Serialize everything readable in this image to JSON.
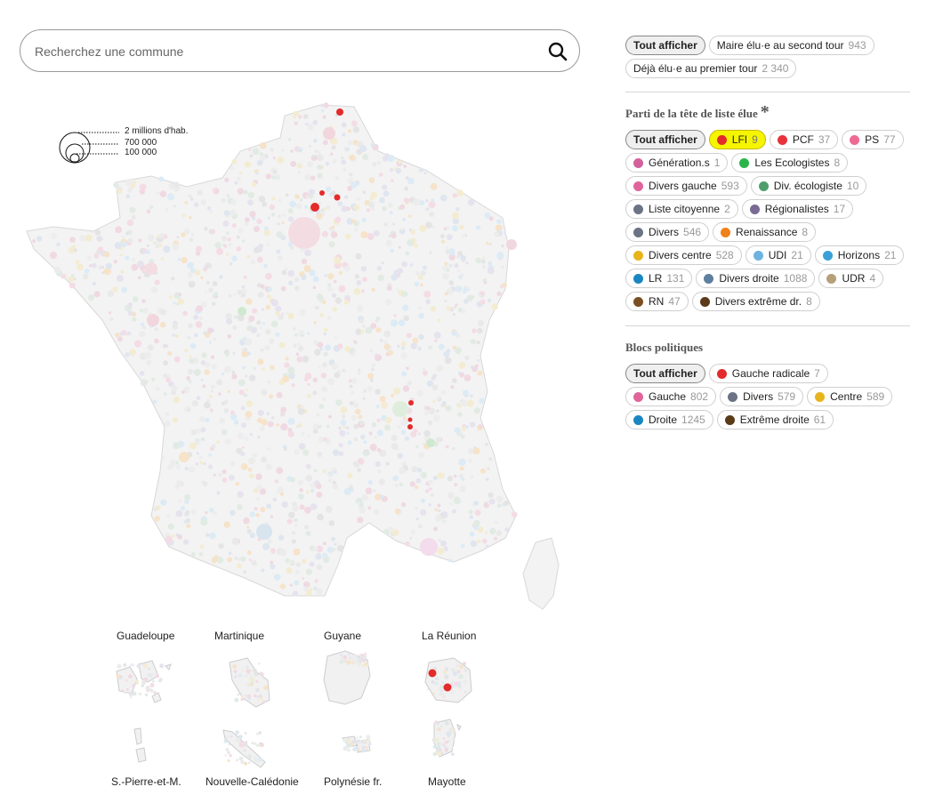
{
  "search": {
    "placeholder": "Recherchez une commune",
    "icon": "search-icon"
  },
  "scale_legend": {
    "labels": [
      "2 millions d'hab.",
      "700 000",
      "100 000"
    ]
  },
  "overseas": [
    {
      "name": "Guadeloupe"
    },
    {
      "name": "Martinique"
    },
    {
      "name": "Guyane"
    },
    {
      "name": "La Réunion"
    },
    {
      "name": "S.-Pierre-et-M."
    },
    {
      "name": "Nouvelle-Calédonie"
    },
    {
      "name": "Polynésie fr."
    },
    {
      "name": "Mayotte"
    }
  ],
  "filters": {
    "round": {
      "all": "Tout afficher",
      "items": [
        {
          "label": "Maire élu·e au second tour",
          "count": "943"
        },
        {
          "label": "Déjà élu·e au premier tour",
          "count": "2 340"
        }
      ]
    },
    "party": {
      "title": "Parti de la tête de liste élue",
      "asterisk": "*",
      "all": "Tout afficher",
      "items": [
        {
          "label": "LFI",
          "count": "9",
          "color": "#e32b2b",
          "highlighted": true
        },
        {
          "label": "PCF",
          "count": "37",
          "color": "#e8323c"
        },
        {
          "label": "PS",
          "count": "77",
          "color": "#ee6a92"
        },
        {
          "label": "Génération.s",
          "count": "1",
          "color": "#d2619b"
        },
        {
          "label": "Les Ecologistes",
          "count": "8",
          "color": "#2bb44a"
        },
        {
          "label": "Divers gauche",
          "count": "593",
          "color": "#e0649b"
        },
        {
          "label": "Div. écologiste",
          "count": "10",
          "color": "#4f9e6e"
        },
        {
          "label": "Liste citoyenne",
          "count": "2",
          "color": "#6b7385"
        },
        {
          "label": "Régionalistes",
          "count": "17",
          "color": "#7a6a94"
        },
        {
          "label": "Divers",
          "count": "546",
          "color": "#6b7385"
        },
        {
          "label": "Renaissance",
          "count": "8",
          "color": "#f08019"
        },
        {
          "label": "Divers centre",
          "count": "528",
          "color": "#e8b41c"
        },
        {
          "label": "UDI",
          "count": "21",
          "color": "#6cb3e0"
        },
        {
          "label": "Horizons",
          "count": "21",
          "color": "#3aa0d8"
        },
        {
          "label": "LR",
          "count": "131",
          "color": "#1a86c0"
        },
        {
          "label": "Divers droite",
          "count": "1088",
          "color": "#5f7f9f"
        },
        {
          "label": "UDR",
          "count": "4",
          "color": "#b6a07a"
        },
        {
          "label": "RN",
          "count": "47",
          "color": "#7a4f22"
        },
        {
          "label": "Divers extrême dr.",
          "count": "8",
          "color": "#5a3a18"
        }
      ]
    },
    "blocs": {
      "title": "Blocs politiques",
      "all": "Tout afficher",
      "items": [
        {
          "label": "Gauche radicale",
          "count": "7",
          "color": "#e32b2b"
        },
        {
          "label": "Gauche",
          "count": "802",
          "color": "#e0649b"
        },
        {
          "label": "Divers",
          "count": "579",
          "color": "#6b7385"
        },
        {
          "label": "Centre",
          "count": "589",
          "color": "#e8b41c"
        },
        {
          "label": "Droite",
          "count": "1245",
          "color": "#1a86c0"
        },
        {
          "label": "Extrême droite",
          "count": "61",
          "color": "#5a3a18"
        }
      ]
    }
  }
}
